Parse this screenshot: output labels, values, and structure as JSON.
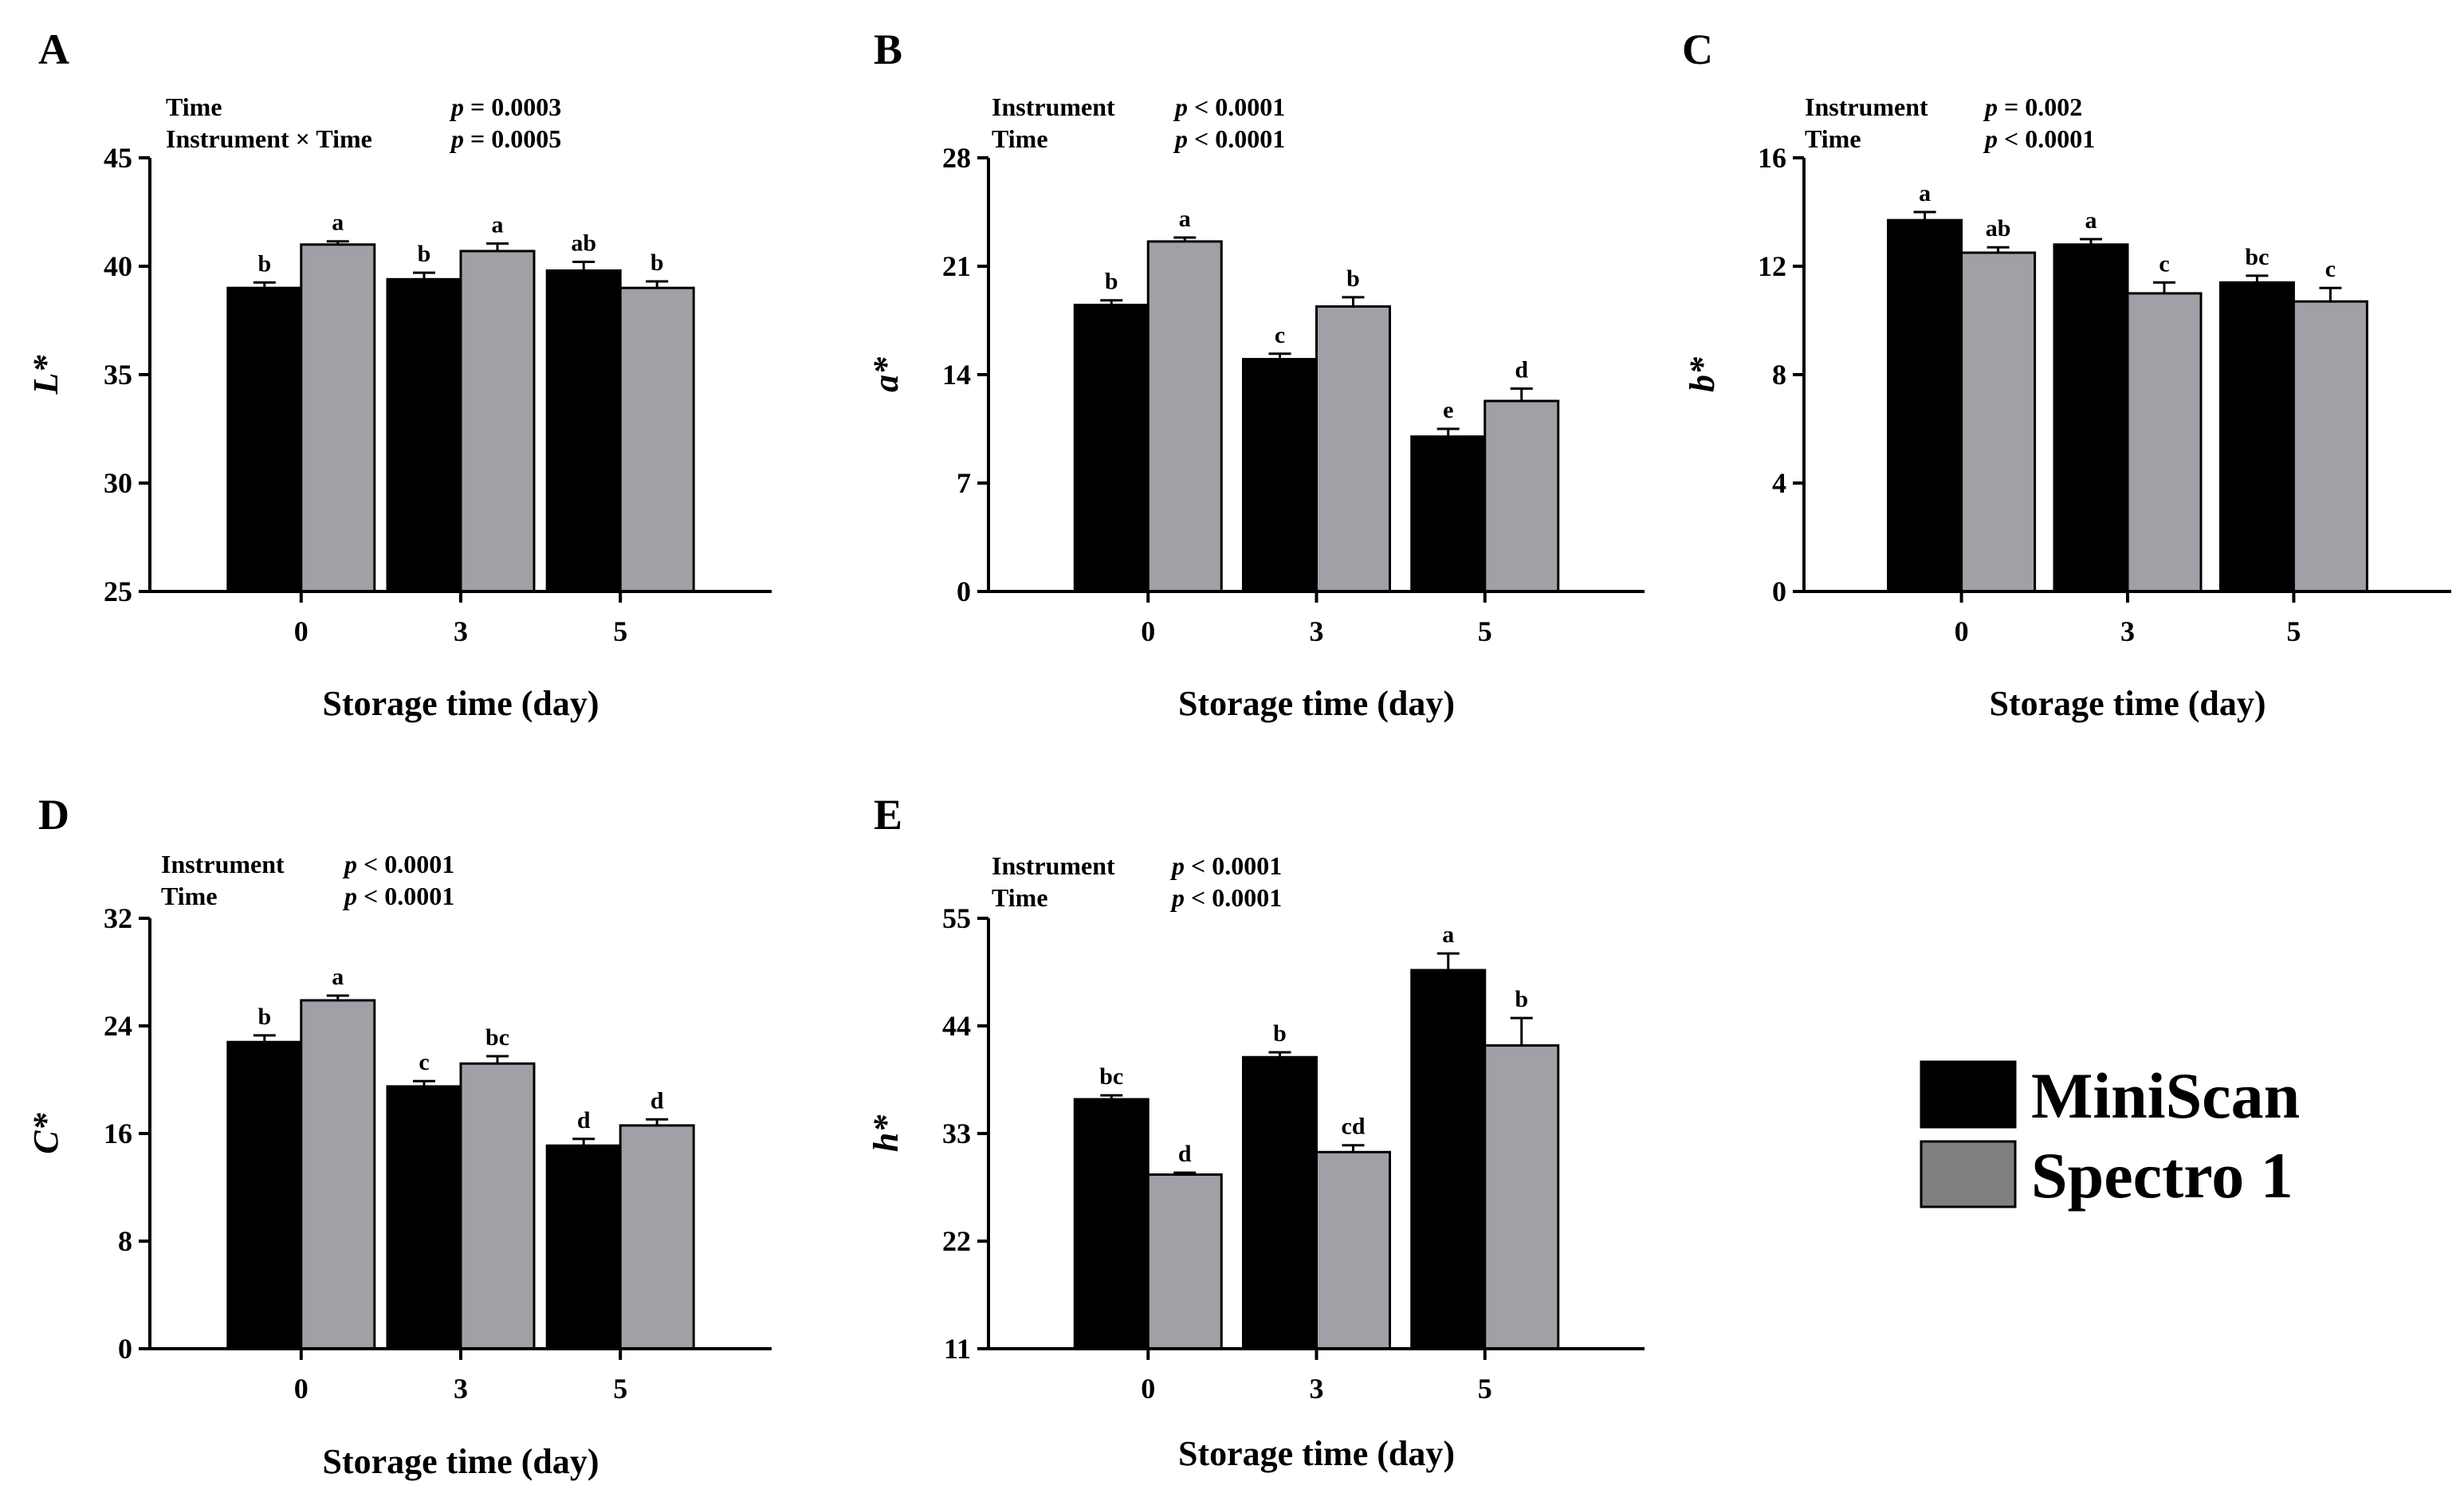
{
  "legend": {
    "items": [
      {
        "label": "MiniScan",
        "color": "#000000"
      },
      {
        "label": "Spectro 1",
        "color": "#7f7f7f"
      }
    ]
  },
  "chart_data": [
    {
      "panel": "A",
      "type": "bar",
      "stats": [
        {
          "term": "Time",
          "p": "p = 0.0003"
        },
        {
          "term": "Instrument × Time",
          "p": "p = 0.0005"
        }
      ],
      "xlabel": "Storage time (day)",
      "ylabel": "L*",
      "categories": [
        "0",
        "3",
        "5"
      ],
      "ylim": [
        25,
        45
      ],
      "yticks": [
        25,
        30,
        35,
        40,
        45
      ],
      "series": [
        {
          "name": "MiniScan",
          "color": "#000000",
          "values": [
            39.0,
            39.4,
            39.8
          ],
          "errors": [
            0.25,
            0.3,
            0.4
          ],
          "letters": [
            "b",
            "b",
            "ab"
          ]
        },
        {
          "name": "Spectro 1",
          "color": "#a0a0a6",
          "values": [
            41.0,
            40.7,
            39.0
          ],
          "errors": [
            0.15,
            0.35,
            0.3
          ],
          "letters": [
            "a",
            "a",
            "b"
          ]
        }
      ]
    },
    {
      "panel": "B",
      "type": "bar",
      "stats": [
        {
          "term": "Instrument",
          "p": "p < 0.0001"
        },
        {
          "term": "Time",
          "p": "p < 0.0001"
        }
      ],
      "xlabel": "Storage time (day)",
      "ylabel": "a*",
      "categories": [
        "0",
        "3",
        "5"
      ],
      "ylim": [
        0,
        28
      ],
      "yticks": [
        0,
        7,
        14,
        21,
        28
      ],
      "series": [
        {
          "name": "MiniScan",
          "color": "#000000",
          "values": [
            18.5,
            15.0,
            10.0
          ],
          "errors": [
            0.3,
            0.35,
            0.5
          ],
          "letters": [
            "b",
            "c",
            "e"
          ]
        },
        {
          "name": "Spectro 1",
          "color": "#a0a0a6",
          "values": [
            22.6,
            18.4,
            12.3
          ],
          "errors": [
            0.25,
            0.6,
            0.8
          ],
          "letters": [
            "a",
            "b",
            "d"
          ]
        }
      ]
    },
    {
      "panel": "C",
      "type": "bar",
      "stats": [
        {
          "term": "Instrument",
          "p": "p = 0.002"
        },
        {
          "term": "Time",
          "p": "p < 0.0001"
        }
      ],
      "xlabel": "Storage time (day)",
      "ylabel": "b*",
      "categories": [
        "0",
        "3",
        "5"
      ],
      "ylim": [
        0,
        16
      ],
      "yticks": [
        0,
        4,
        8,
        12,
        16
      ],
      "series": [
        {
          "name": "MiniScan",
          "color": "#000000",
          "values": [
            13.7,
            12.8,
            11.4
          ],
          "errors": [
            0.3,
            0.2,
            0.25
          ],
          "letters": [
            "a",
            "a",
            "bc"
          ]
        },
        {
          "name": "Spectro 1",
          "color": "#a0a0a6",
          "values": [
            12.5,
            11.0,
            10.7
          ],
          "errors": [
            0.2,
            0.4,
            0.5
          ],
          "letters": [
            "ab",
            "c",
            "c"
          ]
        }
      ]
    },
    {
      "panel": "D",
      "type": "bar",
      "stats": [
        {
          "term": "Instrument",
          "p": "p < 0.0001"
        },
        {
          "term": "Time",
          "p": "p < 0.0001"
        }
      ],
      "xlabel": "Storage time (day)",
      "ylabel": "C*",
      "categories": [
        "0",
        "3",
        "5"
      ],
      "ylim": [
        0,
        32
      ],
      "yticks": [
        0,
        8,
        16,
        24,
        32
      ],
      "series": [
        {
          "name": "MiniScan",
          "color": "#000000",
          "values": [
            22.8,
            19.5,
            15.1
          ],
          "errors": [
            0.5,
            0.4,
            0.5
          ],
          "letters": [
            "b",
            "c",
            "d"
          ]
        },
        {
          "name": "Spectro 1",
          "color": "#a0a0a6",
          "values": [
            25.9,
            21.2,
            16.6
          ],
          "errors": [
            0.35,
            0.55,
            0.45
          ],
          "letters": [
            "a",
            "bc",
            "d"
          ]
        }
      ]
    },
    {
      "panel": "E",
      "type": "bar",
      "stats": [
        {
          "term": "Instrument",
          "p": "p < 0.0001"
        },
        {
          "term": "Time",
          "p": "p < 0.0001"
        }
      ],
      "xlabel": "Storage time (day)",
      "ylabel": "h*",
      "categories": [
        "0",
        "3",
        "5"
      ],
      "ylim": [
        11,
        55
      ],
      "yticks": [
        11,
        22,
        33,
        44,
        55
      ],
      "series": [
        {
          "name": "MiniScan",
          "color": "#000000",
          "values": [
            36.5,
            40.8,
            49.7
          ],
          "errors": [
            0.4,
            0.5,
            1.7
          ],
          "letters": [
            "bc",
            "b",
            "a"
          ]
        },
        {
          "name": "Spectro 1",
          "color": "#a0a0a6",
          "values": [
            28.8,
            31.1,
            42.0
          ],
          "errors": [
            0.2,
            0.7,
            2.8
          ],
          "letters": [
            "d",
            "cd",
            "b"
          ]
        }
      ]
    }
  ]
}
